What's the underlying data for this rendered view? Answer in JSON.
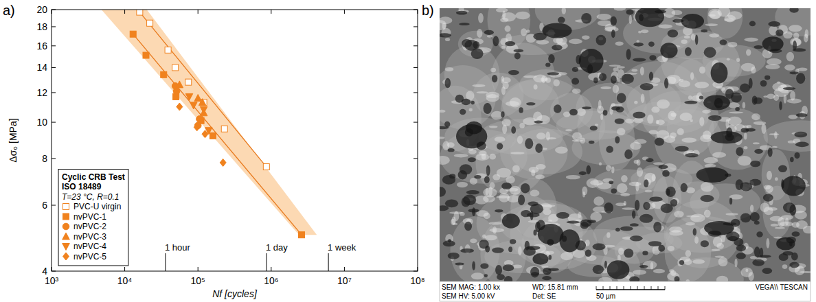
{
  "chart_data": {
    "type": "scatter",
    "panel_label": "a)",
    "x_label": "Nf [cycles]",
    "y_label": "Δσ₀ [MPa]",
    "log": true,
    "xlim": [
      1000,
      100000000
    ],
    "ylim": [
      4,
      20
    ],
    "xticks": [
      {
        "value": 1000,
        "label": "10³"
      },
      {
        "value": 10000,
        "label": "10⁴"
      },
      {
        "value": 100000,
        "label": "10⁵"
      },
      {
        "value": 1000000,
        "label": "10⁶"
      },
      {
        "value": 10000000,
        "label": "10⁷"
      },
      {
        "value": 100000000,
        "label": "10⁸"
      }
    ],
    "yticks": [
      4,
      6,
      8,
      10,
      12,
      14,
      16,
      18,
      20
    ],
    "legend": "bottom-left",
    "legend_title": [
      "Cyclic CRB Test",
      "ISO 18489",
      "T=23 °C, R=0.1"
    ],
    "series": [
      {
        "name": "PVC-U virgin",
        "color": "#f0821e",
        "marker": "open-square",
        "x": [
          16000,
          22000,
          39000,
          49000,
          74000,
          120000,
          230000,
          860000
        ],
        "values": [
          19.7,
          18.4,
          15.6,
          14.0,
          12.8,
          11.3,
          9.6,
          7.6
        ]
      },
      {
        "name": "nvPVC-1",
        "color": "#f0821e",
        "marker": "square",
        "x": [
          13000,
          19500,
          34000,
          50000,
          110000,
          160000,
          2600000
        ],
        "values": [
          17.2,
          15.1,
          13.4,
          11.7,
          10.1,
          9.2,
          5.0
        ]
      },
      {
        "name": "nvPVC-2",
        "color": "#f0821e",
        "marker": "circle",
        "x": [
          49000,
          51000,
          100000,
          105000
        ],
        "values": [
          12.5,
          12.1,
          9.8,
          10.2
        ]
      },
      {
        "name": "nvPVC-3",
        "color": "#f0821e",
        "marker": "triangle-up",
        "x": [
          56000,
          100000,
          115000,
          120000
        ],
        "values": [
          12.6,
          11.6,
          11.3,
          10.6
        ]
      },
      {
        "name": "nvPVC-4",
        "color": "#f0821e",
        "marker": "triangle-down",
        "x": [
          76000,
          87000,
          120000,
          140000
        ],
        "values": [
          11.7,
          11.1,
          10.8,
          9.5
        ]
      },
      {
        "name": "nvPVC-5",
        "color": "#f0821e",
        "marker": "diamond",
        "x": [
          56000,
          97000,
          125000,
          220000
        ],
        "values": [
          11.0,
          9.7,
          9.3,
          7.8
        ]
      }
    ],
    "fits": [
      {
        "color": "#e8781a",
        "x": [
          16000,
          860000
        ],
        "values": [
          19.7,
          7.6
        ]
      },
      {
        "color": "#e8781a",
        "x": [
          13000,
          2600000
        ],
        "values": [
          17.2,
          5.0
        ]
      }
    ],
    "band": {
      "color": "#fbcfa0",
      "x": [
        4800,
        20000,
        4200000,
        2400000
      ],
      "values": [
        20,
        20,
        5.0,
        5.0
      ]
    },
    "annotations": [
      {
        "text": "1 hour",
        "x": 36000
      },
      {
        "text": "1 day",
        "x": 864000
      },
      {
        "text": "1 week",
        "x": 6048000
      }
    ]
  },
  "image_panel": {
    "panel_label": "b)",
    "info": [
      "SEM MAG: 1.00 kx",
      "WD: 15.81 mm",
      "SEM HV: 5.00 kV",
      "Det: SE"
    ],
    "scale_bar": "50 µm",
    "brand": "VEGA\\\\ TESCAN"
  }
}
